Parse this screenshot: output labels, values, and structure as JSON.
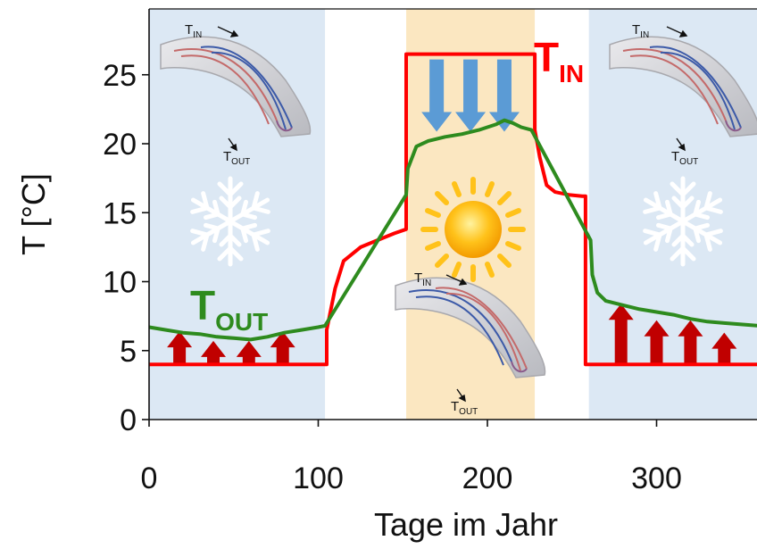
{
  "chart_data": {
    "type": "line",
    "title": "",
    "xlabel": "Tage im Jahr",
    "ylabel": "T [°C]",
    "xlim": [
      0,
      360
    ],
    "ylim": [
      0,
      29
    ],
    "xticks": [
      0,
      100,
      200,
      300
    ],
    "yticks": [
      0,
      5,
      10,
      15,
      20,
      25
    ],
    "grid": false,
    "series": [
      {
        "name": "T_IN",
        "color": "#ff0000",
        "x": [
          0,
          105,
          105,
          110,
          115,
          125,
          135,
          145,
          152,
          152,
          170,
          228,
          228,
          231,
          235,
          240,
          248,
          256,
          258,
          258,
          360
        ],
        "y": [
          4,
          4,
          6.5,
          9.5,
          11.5,
          12.5,
          13,
          13.5,
          13.8,
          26.5,
          26.5,
          26.5,
          21,
          19,
          17,
          16.5,
          16.3,
          16.2,
          16.2,
          4,
          4
        ]
      },
      {
        "name": "T_OUT",
        "color": "#2e8b1e",
        "x": [
          0,
          10,
          20,
          30,
          40,
          50,
          60,
          70,
          80,
          90,
          100,
          104,
          152,
          153,
          158,
          165,
          175,
          185,
          195,
          200,
          205,
          210,
          215,
          220,
          226,
          261,
          262,
          265,
          270,
          280,
          290,
          300,
          310,
          320,
          330,
          340,
          350,
          360
        ],
        "y": [
          6.7,
          6.5,
          6.3,
          6.2,
          6.0,
          5.9,
          5.8,
          6.0,
          6.3,
          6.5,
          6.7,
          6.8,
          16.3,
          18.2,
          19.8,
          20.2,
          20.5,
          20.7,
          21.0,
          21.2,
          21.4,
          21.7,
          21.5,
          21.2,
          21.0,
          13,
          10.5,
          9.2,
          8.6,
          8.3,
          8.0,
          7.8,
          7.6,
          7.3,
          7.1,
          7.0,
          6.9,
          6.8
        ]
      }
    ],
    "shaded_regions": [
      {
        "season": "winter",
        "x_start": 0,
        "x_end": 104,
        "color": "#dce8f4"
      },
      {
        "season": "summer",
        "x_start": 152,
        "x_end": 228,
        "color": "#fbe7c1"
      },
      {
        "season": "winter",
        "x_start": 260,
        "x_end": 360,
        "color": "#dce8f4"
      }
    ],
    "heat_arrows_up": [
      {
        "x": 18,
        "top": 6.4
      },
      {
        "x": 38,
        "top": 5.7
      },
      {
        "x": 59,
        "top": 5.7
      },
      {
        "x": 79,
        "top": 6.4
      },
      {
        "x": 279,
        "top": 8.4
      },
      {
        "x": 300,
        "top": 7.2
      },
      {
        "x": 320,
        "top": 7.2
      },
      {
        "x": 340,
        "top": 6.3
      }
    ],
    "cool_arrows_down": [
      {
        "x": 170
      },
      {
        "x": 190
      },
      {
        "x": 210
      }
    ],
    "labels": {
      "t_in": {
        "main": "T",
        "sub": "IN"
      },
      "t_out": {
        "main": "T",
        "sub": "OUT"
      },
      "mini_in": {
        "main": "T",
        "sub": "IN"
      },
      "mini_out": {
        "main": "T",
        "sub": "OUT"
      }
    }
  }
}
